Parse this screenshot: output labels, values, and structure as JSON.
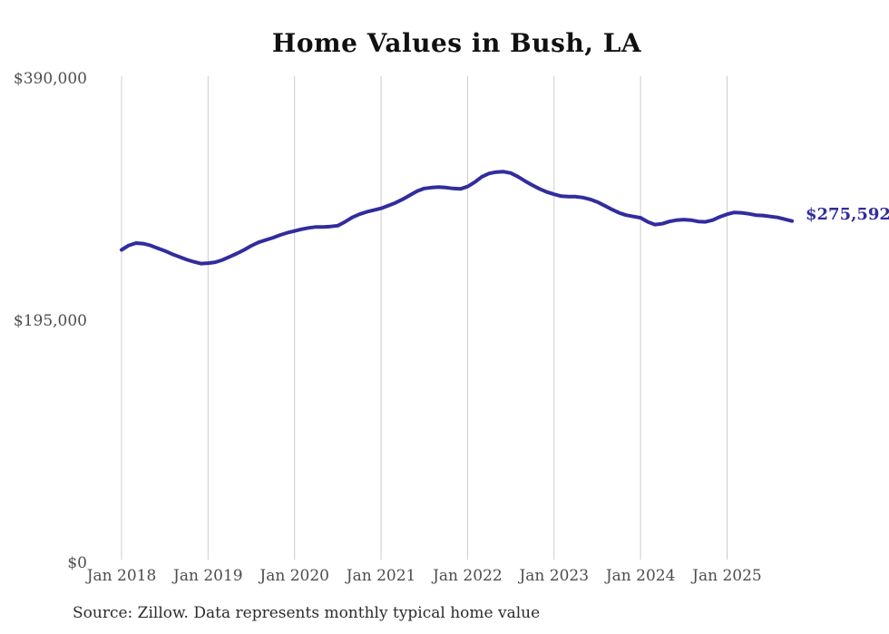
{
  "chart": {
    "title": "Home Values in Bush, LA",
    "source": "Source: Zillow. Data represents monthly typical home value",
    "latest_value_label": "$275,592"
  },
  "chart_data": {
    "type": "line",
    "title": "Home Values in Bush, LA",
    "xlabel": "",
    "ylabel": "",
    "ylim": [
      0,
      390000
    ],
    "grid": "vertical-only",
    "legend": "none",
    "line_color": "#322c9e",
    "grid_color": "#cccccc",
    "latest_value": 275592,
    "latest_value_label": "$275,592",
    "source": "Source: Zillow. Data represents monthly typical home value",
    "y_ticks": [
      {
        "label": "$390,000",
        "value": 390000
      },
      {
        "label": "$195,000",
        "value": 195000
      },
      {
        "label": "$0",
        "value": 0
      }
    ],
    "x_ticks": [
      {
        "label": "Jan 2018",
        "month_index": 0
      },
      {
        "label": "Jan 2019",
        "month_index": 12
      },
      {
        "label": "Jan 2020",
        "month_index": 24
      },
      {
        "label": "Jan 2021",
        "month_index": 36
      },
      {
        "label": "Jan 2022",
        "month_index": 48
      },
      {
        "label": "Jan 2023",
        "month_index": 60
      },
      {
        "label": "Jan 2024",
        "month_index": 72
      },
      {
        "label": "Jan 2025",
        "month_index": 84
      }
    ],
    "x": [
      "2018-01",
      "2018-02",
      "2018-03",
      "2018-04",
      "2018-05",
      "2018-06",
      "2018-07",
      "2018-08",
      "2018-09",
      "2018-10",
      "2018-11",
      "2018-12",
      "2019-01",
      "2019-02",
      "2019-03",
      "2019-04",
      "2019-05",
      "2019-06",
      "2019-07",
      "2019-08",
      "2019-09",
      "2019-10",
      "2019-11",
      "2019-12",
      "2020-01",
      "2020-02",
      "2020-03",
      "2020-04",
      "2020-05",
      "2020-06",
      "2020-07",
      "2020-08",
      "2020-09",
      "2020-10",
      "2020-11",
      "2020-12",
      "2021-01",
      "2021-02",
      "2021-03",
      "2021-04",
      "2021-05",
      "2021-06",
      "2021-07",
      "2021-08",
      "2021-09",
      "2021-10",
      "2021-11",
      "2021-12",
      "2022-01",
      "2022-02",
      "2022-03",
      "2022-04",
      "2022-05",
      "2022-06",
      "2022-07",
      "2022-08",
      "2022-09",
      "2022-10",
      "2022-11",
      "2022-12",
      "2023-01",
      "2023-02",
      "2023-03",
      "2023-04",
      "2023-05",
      "2023-06",
      "2023-07",
      "2023-08",
      "2023-09",
      "2023-10",
      "2023-11",
      "2023-12",
      "2024-01",
      "2024-02",
      "2024-03",
      "2024-04",
      "2024-05",
      "2024-06",
      "2024-07",
      "2024-08",
      "2024-09",
      "2024-10",
      "2024-11",
      "2024-12",
      "2025-01",
      "2025-02",
      "2025-03",
      "2025-04",
      "2025-05",
      "2025-06",
      "2025-07",
      "2025-08",
      "2025-09",
      "2025-10"
    ],
    "values": [
      252300,
      255900,
      257800,
      257400,
      255900,
      253700,
      251500,
      249000,
      246800,
      244600,
      242800,
      241300,
      241700,
      242400,
      244200,
      246800,
      249400,
      252300,
      255600,
      258400,
      260300,
      262100,
      264300,
      266100,
      267500,
      269000,
      270100,
      270800,
      270800,
      271200,
      271800,
      274900,
      278500,
      281000,
      282900,
      284300,
      285800,
      288000,
      290200,
      293100,
      296400,
      299600,
      301800,
      302500,
      302900,
      302500,
      301800,
      301400,
      303300,
      306900,
      311300,
      313900,
      315000,
      315300,
      314200,
      311300,
      307700,
      304400,
      301400,
      298900,
      297100,
      295600,
      295200,
      295200,
      294500,
      293000,
      290900,
      288000,
      285000,
      282200,
      280300,
      279200,
      278200,
      274900,
      272700,
      273400,
      275200,
      276300,
      276700,
      276300,
      275200,
      274900,
      276300,
      278900,
      281000,
      282500,
      282200,
      281400,
      280300,
      280000,
      279200,
      278500,
      277000,
      275592
    ]
  }
}
